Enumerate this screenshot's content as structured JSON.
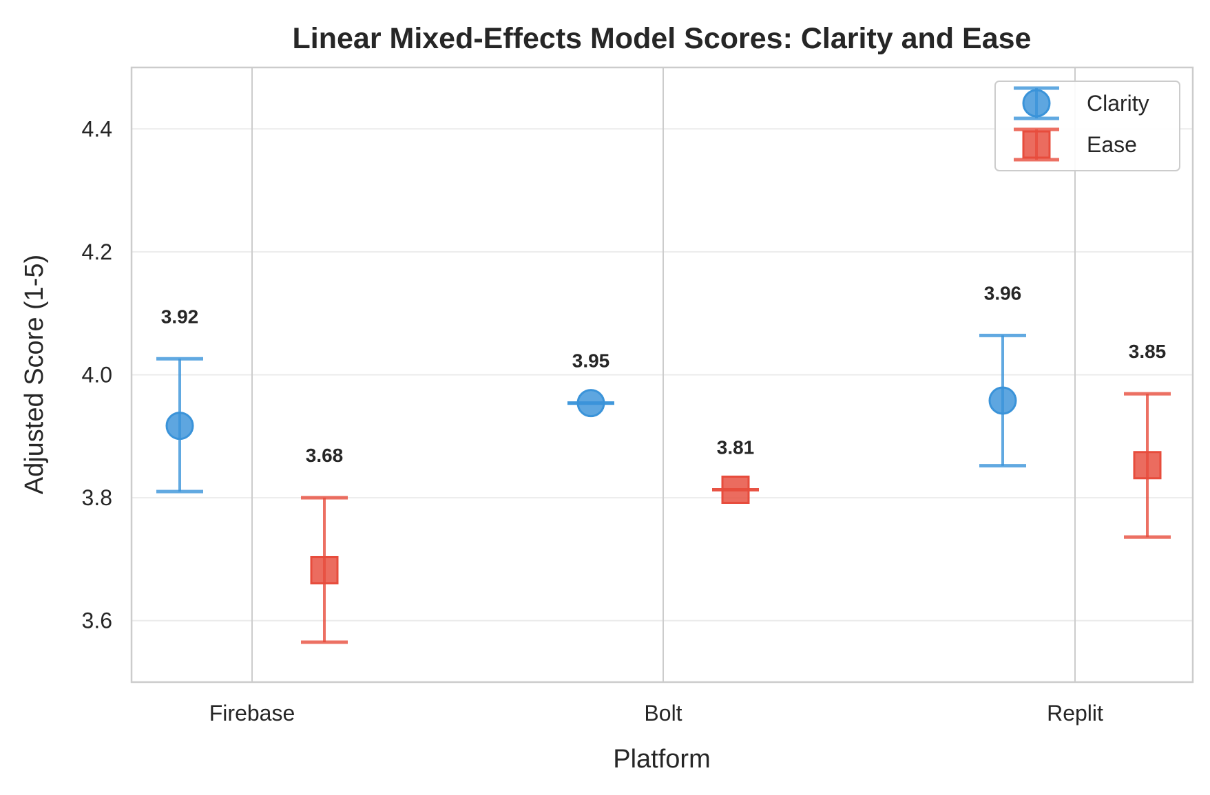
{
  "chart_data": {
    "type": "errorbar",
    "title": "Linear Mixed-Effects Model Scores: Clarity and Ease",
    "xlabel": "Platform",
    "ylabel": "Adjusted Score (1-5)",
    "categories": [
      "Firebase",
      "Bolt",
      "Replit"
    ],
    "ylim": [
      3.5,
      4.5
    ],
    "yticks": [
      3.6,
      3.8,
      4.0,
      4.2,
      4.4
    ],
    "ytick_labels": [
      "3.6",
      "3.8",
      "4.0",
      "4.2",
      "4.4"
    ],
    "grid": true,
    "legend_position": "top-right",
    "series": [
      {
        "name": "Clarity",
        "marker": "circle",
        "color": "#3a93d9",
        "values": [
          3.917,
          3.954,
          3.958
        ],
        "lower": [
          3.81,
          3.954,
          3.852
        ],
        "upper": [
          4.026,
          3.954,
          4.064
        ],
        "labels": [
          "3.92",
          "3.95",
          "3.96"
        ]
      },
      {
        "name": "Ease",
        "marker": "square",
        "color": "#e74c3c",
        "values": [
          3.682,
          3.813,
          3.853
        ],
        "lower": [
          3.565,
          3.813,
          3.736
        ],
        "upper": [
          3.8,
          3.813,
          3.969
        ],
        "labels": [
          "3.68",
          "3.81",
          "3.85"
        ]
      }
    ]
  }
}
